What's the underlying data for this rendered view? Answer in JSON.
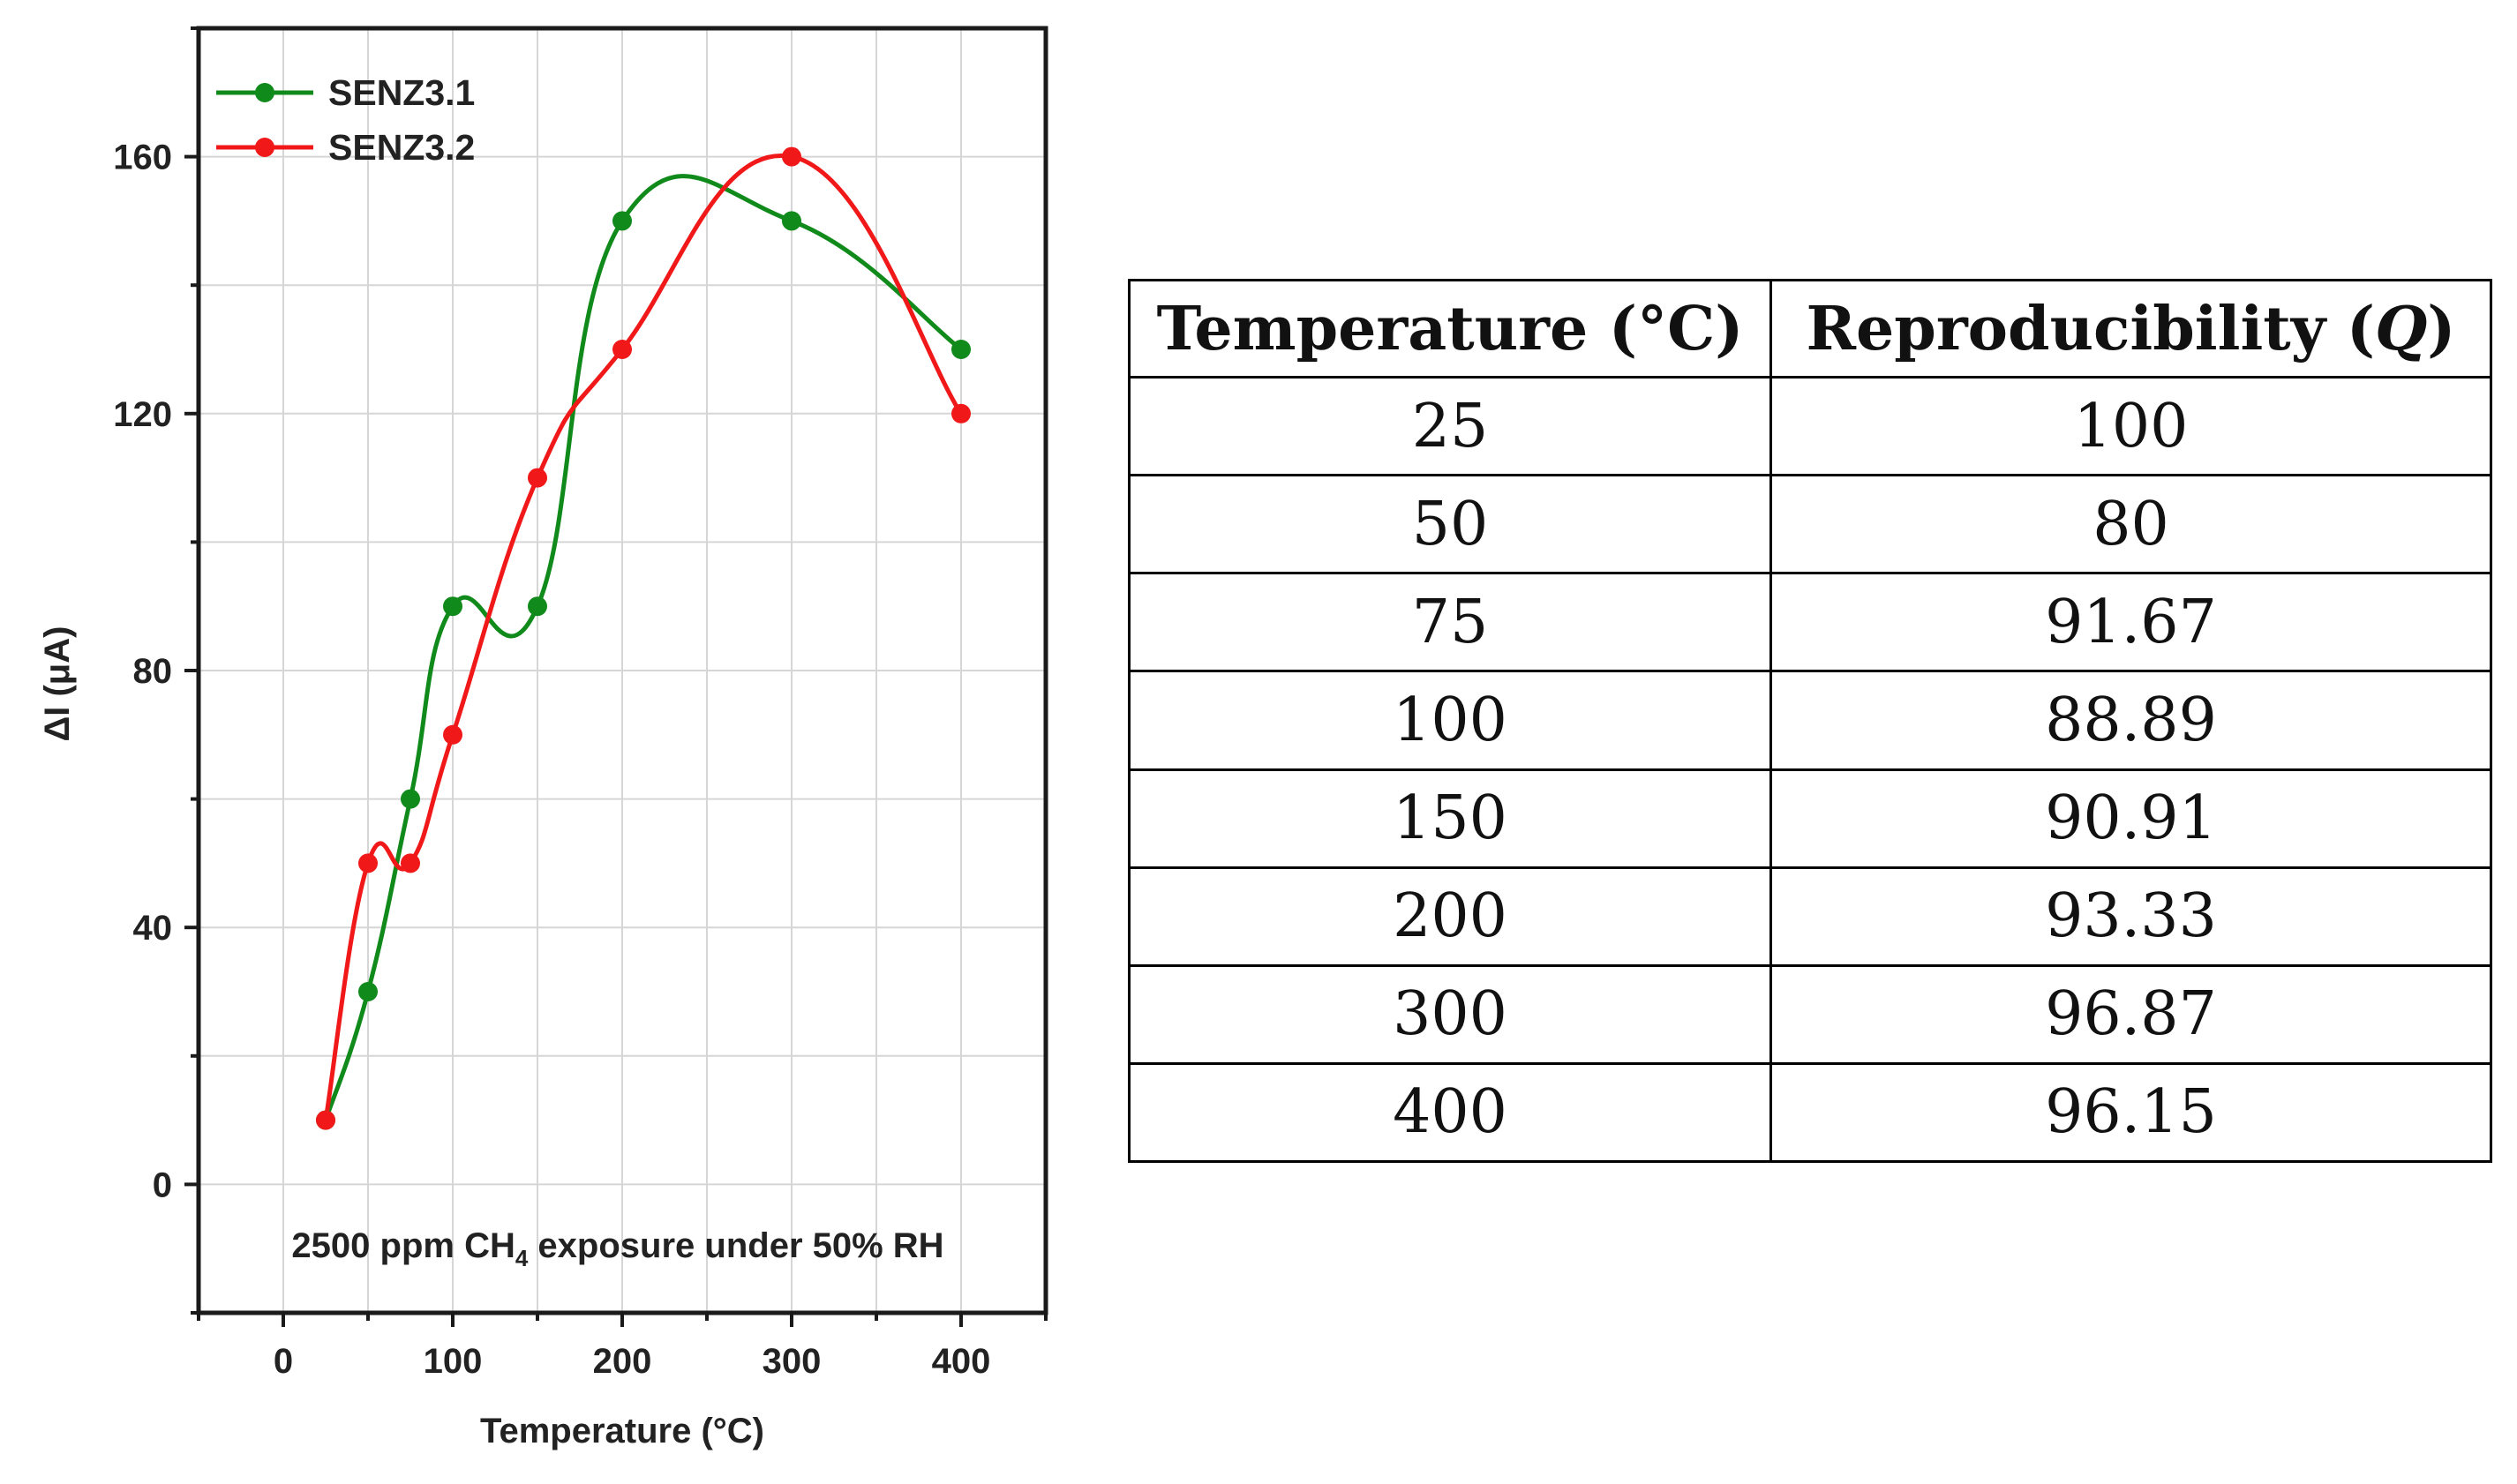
{
  "chart_data": {
    "type": "line",
    "title": "",
    "xlabel": "Temperature (°C)",
    "ylabel": "ΔI (μA)",
    "xlim": [
      -50,
      450
    ],
    "ylim": [
      -20,
      180
    ],
    "xticks": [
      0,
      100,
      200,
      300,
      400
    ],
    "yticks": [
      0,
      40,
      80,
      120,
      160
    ],
    "grid": true,
    "legend_position": "top-left",
    "annotation": {
      "pre": "2500 ppm CH",
      "sub": "4",
      "post": " exposure under 50% RH"
    },
    "series": [
      {
        "name": "SENZ3.1",
        "color": "#108a1a",
        "x": [
          25,
          50,
          75,
          100,
          150,
          200,
          300,
          400
        ],
        "y": [
          10,
          30,
          60,
          90,
          90,
          150,
          150,
          130
        ]
      },
      {
        "name": "SENZ3.2",
        "color": "#f01818",
        "x": [
          25,
          50,
          75,
          100,
          150,
          200,
          300,
          400
        ],
        "y": [
          10,
          50,
          50,
          70,
          110,
          130,
          160,
          120
        ]
      }
    ]
  },
  "table": {
    "header_temp": "Temperature (°C)",
    "header_rep_pre": "Reproducibility (",
    "header_rep_var": "Q",
    "header_rep_post": ")",
    "rows": [
      {
        "temp": "25",
        "rep": "100"
      },
      {
        "temp": "50",
        "rep": "80"
      },
      {
        "temp": "75",
        "rep": "91.67"
      },
      {
        "temp": "100",
        "rep": "88.89"
      },
      {
        "temp": "150",
        "rep": "90.91"
      },
      {
        "temp": "200",
        "rep": "93.33"
      },
      {
        "temp": "300",
        "rep": "96.87"
      },
      {
        "temp": "400",
        "rep": "96.15"
      }
    ]
  }
}
